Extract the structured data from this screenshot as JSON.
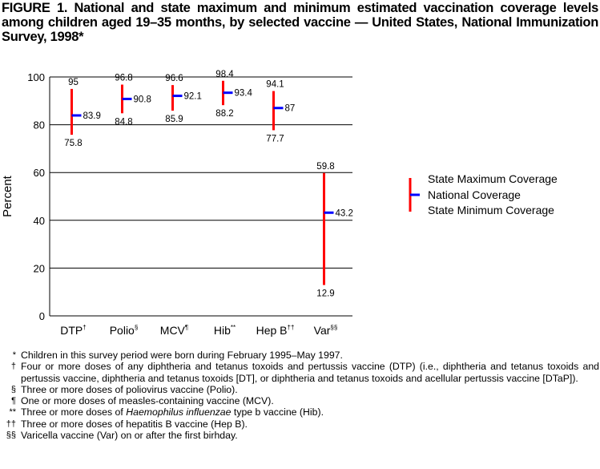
{
  "title": "FIGURE 1. National and state maximum and minimum estimated vaccination coverage levels among children aged 19–35 months, by selected vaccine — United States, National Immunization Survey, 1998*",
  "chart_data": {
    "type": "range",
    "ylabel": "Percent",
    "ylim": [
      0,
      100
    ],
    "yticks": [
      0,
      20,
      40,
      60,
      80,
      100
    ],
    "grid": true,
    "categories": [
      "DTP",
      "Polio",
      "MCV",
      "Hib",
      "Hep B",
      "Var"
    ],
    "category_marks": [
      "†",
      "§",
      "¶",
      "**",
      "††",
      "§§"
    ],
    "max": [
      95,
      96.8,
      96.6,
      98.4,
      94.1,
      59.8
    ],
    "national": [
      83.9,
      90.8,
      92.1,
      93.4,
      87,
      43.2
    ],
    "min": [
      75.8,
      84.8,
      85.9,
      88.2,
      77.7,
      12.9
    ],
    "legend": {
      "placement": "right",
      "max_label": "State Maximum Coverage",
      "national_label": "National Coverage",
      "min_label": "State Minimum Coverage"
    },
    "colors": {
      "range": "#ff0000",
      "national": "#0000ff"
    }
  },
  "footnotes": [
    {
      "mark": "*",
      "text": "Children in this survey period were born during February 1995–May 1997."
    },
    {
      "mark": "†",
      "text": "Four or more doses of any diphtheria and tetanus toxoids and pertussis vaccine (DTP) (i.e., diphtheria and tetanus toxoids and pertussis vaccine, diphtheria and tetanus toxoids [DT], or diphtheria and tetanus toxoids and acellular pertussis vaccine [DTaP])."
    },
    {
      "mark": "§",
      "text": "Three or more doses of poliovirus vaccine (Polio)."
    },
    {
      "mark": "¶",
      "text": "One or more doses of measles-containing vaccine (MCV)."
    },
    {
      "mark": "**",
      "text_before": "Three or more doses of ",
      "italic": "Haemophilus influenzae",
      "text_after": " type b vaccine (Hib)."
    },
    {
      "mark": "††",
      "text": "Three or more doses of hepatitis B vaccine (Hep B)."
    },
    {
      "mark": "§§",
      "text": "Varicella vaccine (Var) on or after the first birhday."
    }
  ]
}
